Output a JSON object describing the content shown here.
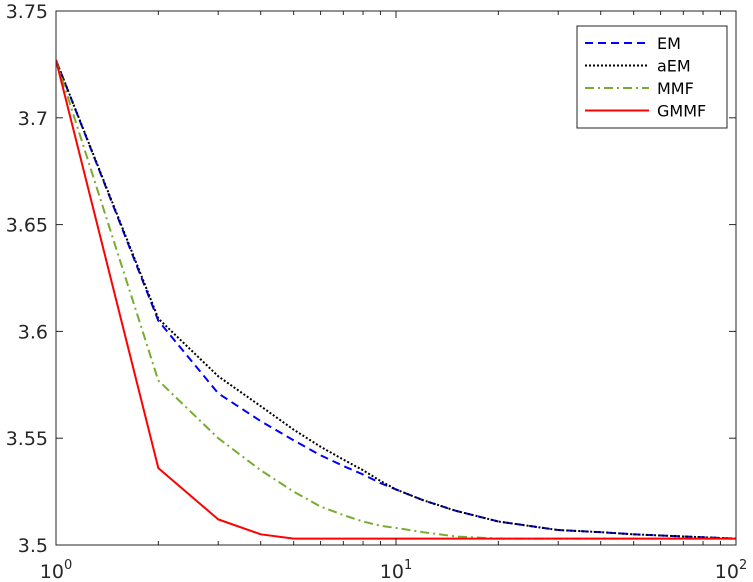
{
  "chart_data": {
    "type": "line",
    "title": "",
    "xlabel": "",
    "ylabel": "",
    "x_scale": "log",
    "xlim": [
      1,
      100
    ],
    "ylim": [
      3.5,
      3.75
    ],
    "x_ticks": [
      {
        "value": 1,
        "base": "10",
        "exp": "0"
      },
      {
        "value": 10,
        "base": "10",
        "exp": "1"
      },
      {
        "value": 100,
        "base": "10",
        "exp": "2"
      }
    ],
    "y_ticks": [
      {
        "value": 3.5,
        "label": "3.5"
      },
      {
        "value": 3.55,
        "label": "3.55"
      },
      {
        "value": 3.6,
        "label": "3.6"
      },
      {
        "value": 3.65,
        "label": "3.65"
      },
      {
        "value": 3.7,
        "label": "3.7"
      },
      {
        "value": 3.75,
        "label": "3.75"
      }
    ],
    "grid": false,
    "legend_position": "top-right",
    "series": [
      {
        "name": "EM",
        "color": "#0000ff",
        "dash": "dashed",
        "x": [
          1,
          2,
          3,
          4,
          5,
          6,
          7,
          8,
          9,
          10,
          12,
          15,
          20,
          30,
          40,
          50,
          70,
          100
        ],
        "y": [
          3.727,
          3.605,
          3.571,
          3.558,
          3.549,
          3.542,
          3.537,
          3.533,
          3.529,
          3.526,
          3.521,
          3.516,
          3.511,
          3.507,
          3.506,
          3.505,
          3.504,
          3.503
        ]
      },
      {
        "name": "aEM",
        "color": "#000000",
        "dash": "dotted",
        "x": [
          1,
          2,
          3,
          4,
          5,
          6,
          7,
          8,
          9,
          10,
          12,
          15,
          20,
          30,
          40,
          50,
          70,
          100
        ],
        "y": [
          3.727,
          3.606,
          3.579,
          3.565,
          3.554,
          3.546,
          3.54,
          3.535,
          3.53,
          3.526,
          3.521,
          3.516,
          3.511,
          3.507,
          3.506,
          3.505,
          3.504,
          3.503
        ]
      },
      {
        "name": "MMF",
        "color": "#77ac30",
        "dash": "dashdot",
        "x": [
          1,
          2,
          3,
          4,
          5,
          6,
          7,
          8,
          9,
          10,
          12,
          15,
          20,
          30,
          40,
          50,
          70,
          100
        ],
        "y": [
          3.727,
          3.577,
          3.55,
          3.535,
          3.525,
          3.518,
          3.514,
          3.511,
          3.509,
          3.508,
          3.506,
          3.504,
          3.503,
          3.503,
          3.503,
          3.503,
          3.503,
          3.503
        ]
      },
      {
        "name": "GMMF",
        "color": "#ff0000",
        "dash": "solid",
        "x": [
          1,
          2,
          3,
          4,
          5,
          6,
          8,
          10,
          20,
          50,
          100
        ],
        "y": [
          3.727,
          3.536,
          3.512,
          3.505,
          3.503,
          3.503,
          3.503,
          3.503,
          3.503,
          3.503,
          3.503
        ]
      }
    ]
  }
}
